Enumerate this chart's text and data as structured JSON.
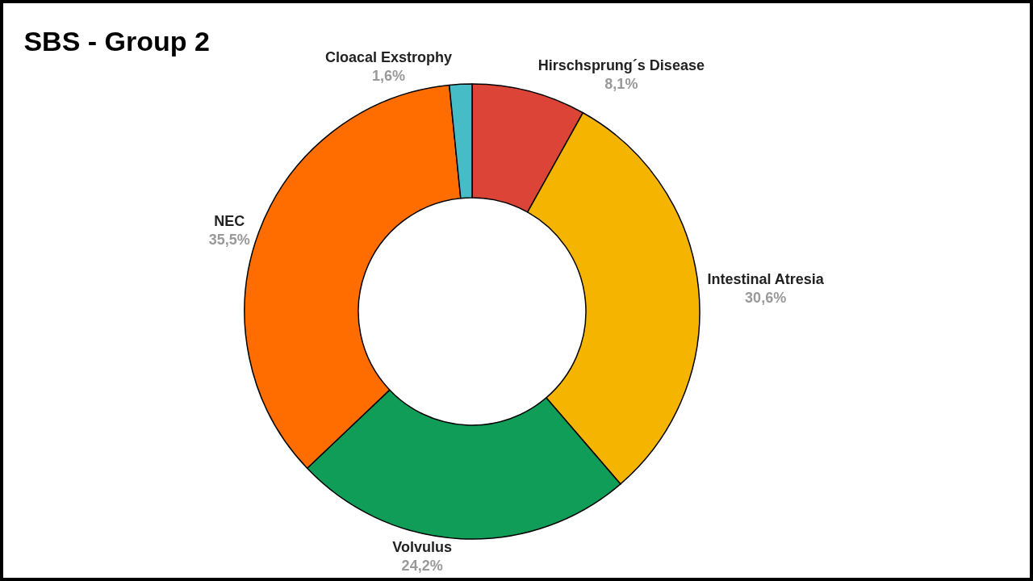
{
  "chart_data": {
    "type": "donut",
    "title": "SBS - Group 2",
    "categories": [
      "Hirschsprung´s Disease",
      "Intestinal Atresia",
      "Volvulus",
      "NEC",
      "Cloacal Exstrophy"
    ],
    "values": [
      8.1,
      30.6,
      24.2,
      35.5,
      1.6
    ],
    "colors": [
      "#db4437",
      "#f4b400",
      "#0f9d58",
      "#ff6d01",
      "#46bdc6"
    ],
    "value_labels": [
      "8,1%",
      "30,6%",
      "24,2%",
      "35,5%",
      "1,6%"
    ]
  }
}
